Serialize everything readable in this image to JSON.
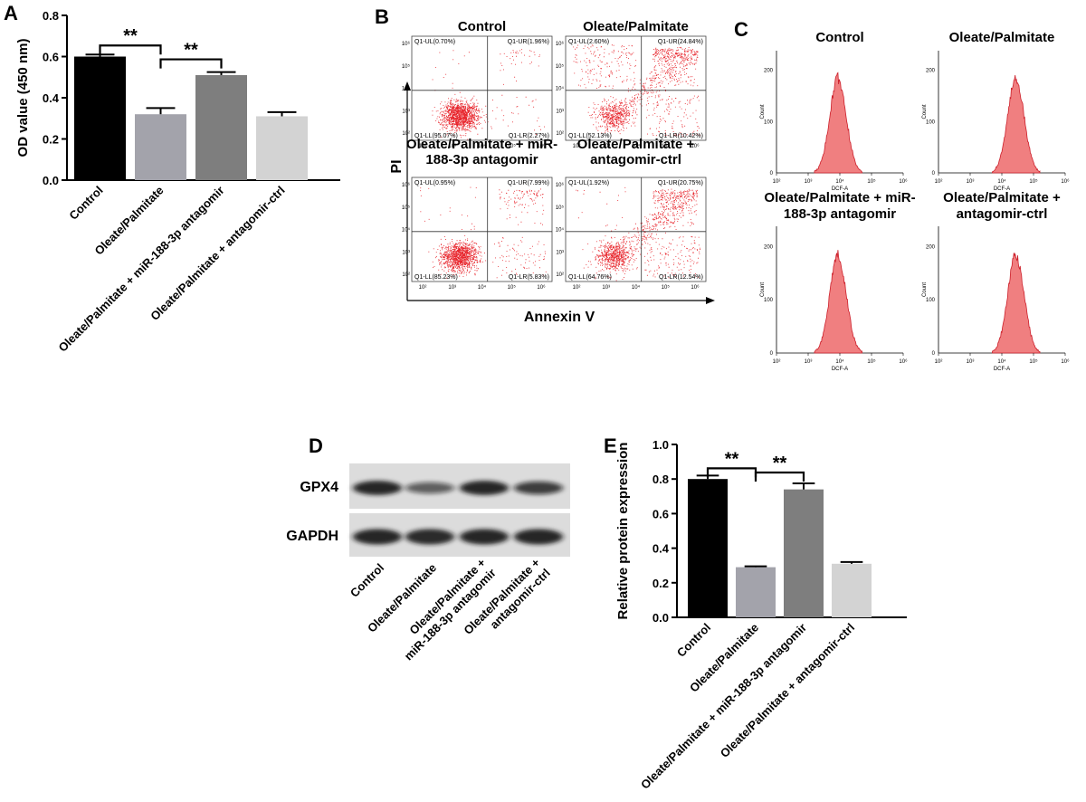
{
  "panels": {
    "A": "A",
    "B": "B",
    "C": "C",
    "D": "D",
    "E": "E"
  },
  "groups": [
    "Control",
    "Oleate/Palmitate",
    "Oleate/Palmitate + miR-188-3p antagomir",
    "Oleate/Palmitate + antagomir-ctrl"
  ],
  "significance_mark": "**",
  "bar_colors": [
    "#000000",
    "#a3a3ab",
    "#7e7e7e",
    "#d3d3d3"
  ],
  "panel_b": {
    "titles": [
      "Control",
      "Oleate/Palmitate",
      "Oleate/Palmitate + miR-\n188-3p antagomir",
      "Oleate/Palmitate +\nantagomir-ctrl"
    ],
    "xlabel": "Annexin V",
    "ylabel": "PI",
    "quadrants": [
      {
        "UL": "Q1-UL(0.70%)",
        "UR": "Q1-UR(1.96%)",
        "LL": "Q1-LL(95.07%)",
        "LR": "Q1-LR(2.27%)"
      },
      {
        "UL": "Q1-UL(2.60%)",
        "UR": "Q1-UR(24.84%)",
        "LL": "Q1-LL(52.13%)",
        "LR": "Q1-LR(10.42%)"
      },
      {
        "UL": "Q1-UL(0.95%)",
        "UR": "Q1-UR(7.99%)",
        "LL": "Q1-LL(85.23%)",
        "LR": "Q1-LR(5.83%)"
      },
      {
        "UL": "Q1-UL(1.92%)",
        "UR": "Q1-UR(20.75%)",
        "LL": "Q1-LL(64.76%)",
        "LR": "Q1-LR(12.54%)"
      }
    ],
    "x_ticks": [
      "10²",
      "10³",
      "10⁴",
      "10⁵",
      "10⁶"
    ],
    "y_ticks": [
      "10²",
      "10³",
      "10⁴",
      "10⁵",
      "10⁶"
    ],
    "dot_color": "#e8262d"
  },
  "panel_c": {
    "titles": [
      "Control",
      "Oleate/Palmitate",
      "Oleate/Palmitate + miR-\n188-3p antagomir",
      "Oleate/Palmitate +\nantagomir-ctrl"
    ],
    "xlabel": "DCF-A",
    "ylabel": "Count",
    "x_ticks": [
      "10²",
      "10³",
      "10⁴",
      "10⁵",
      "10⁶"
    ],
    "y_ticks": [
      "0",
      "100",
      "200"
    ],
    "peak_log_x": [
      3.95,
      4.45,
      3.95,
      4.45
    ],
    "fill_color": "#f07f80",
    "stroke_color": "#cc1f2a"
  },
  "panel_d": {
    "bands": [
      "GPX4",
      "GAPDH"
    ],
    "intensity_gpx4": [
      0.95,
      0.45,
      0.95,
      0.72
    ],
    "intensity_gapdh": [
      0.95,
      0.92,
      0.95,
      0.95
    ]
  },
  "chart_data": [
    {
      "panel": "A",
      "type": "bar",
      "categories": [
        "Control",
        "Oleate/Palmitate",
        "Oleate/Palmitate + miR-188-3p antagomir",
        "Oleate/Palmitate + antagomir-ctrl"
      ],
      "values": [
        0.6,
        0.32,
        0.51,
        0.31
      ],
      "errors": [
        0.01,
        0.03,
        0.015,
        0.02
      ],
      "ylabel": "OD value (450 nm)",
      "ylim": [
        0,
        0.8
      ],
      "yticks": [
        0.0,
        0.2,
        0.4,
        0.6,
        0.8
      ],
      "significance": [
        {
          "from": 0,
          "to": 1,
          "label": "**"
        },
        {
          "from": 1,
          "to": 2,
          "label": "**"
        }
      ]
    },
    {
      "panel": "E",
      "type": "bar",
      "categories": [
        "Control",
        "Oleate/Palmitate",
        "Oleate/Palmitate + miR-188-3p antagomir",
        "Oleate/Palmitate + antagomir-ctrl"
      ],
      "values": [
        0.8,
        0.29,
        0.74,
        0.31
      ],
      "errors": [
        0.02,
        0.005,
        0.035,
        0.01
      ],
      "ylabel": "Relative protein expression",
      "ylim": [
        0,
        1.0
      ],
      "yticks": [
        0.0,
        0.2,
        0.4,
        0.6,
        0.8,
        1.0
      ],
      "significance": [
        {
          "from": 0,
          "to": 1,
          "label": "**"
        },
        {
          "from": 1,
          "to": 2,
          "label": "**"
        }
      ]
    }
  ]
}
